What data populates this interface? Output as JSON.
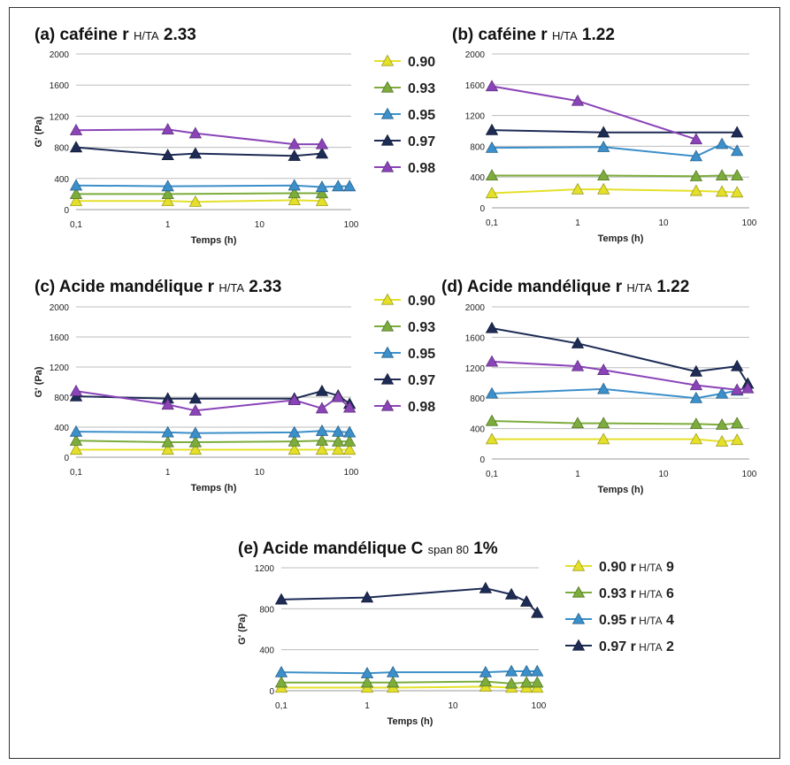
{
  "chart_data": [
    {
      "id": "a",
      "type": "line",
      "title": "(a) caféine r",
      "title_sub": "H/TA",
      "title_value": "2.33",
      "xlabel": "Temps (h)",
      "ylabel": "G' (Pa)",
      "xscale": "log",
      "xlim": [
        0.1,
        100
      ],
      "xticks": [
        "0,1",
        "1",
        "10",
        "100"
      ],
      "ylim": [
        0,
        2000
      ],
      "yticks": [
        "0",
        "400",
        "800",
        "1200",
        "1600",
        "2000"
      ],
      "grid": true,
      "legend_position": "right",
      "series": [
        {
          "name": "0.90",
          "color": "#e4e02a",
          "x": [
            0.1,
            1,
            2,
            24,
            48
          ],
          "y": [
            110,
            110,
            100,
            120,
            110
          ]
        },
        {
          "name": "0.93",
          "color": "#7cac3c",
          "x": [
            0.1,
            1,
            24,
            48
          ],
          "y": [
            200,
            200,
            210,
            210
          ]
        },
        {
          "name": "0.95",
          "color": "#3b8fca",
          "x": [
            0.1,
            1,
            24,
            48,
            72,
            96
          ],
          "y": [
            310,
            300,
            310,
            290,
            300,
            300
          ]
        },
        {
          "name": "0.97",
          "color": "#1d2b55",
          "x": [
            0.1,
            1,
            2,
            24,
            48
          ],
          "y": [
            800,
            700,
            720,
            690,
            720
          ]
        },
        {
          "name": "0.98",
          "color": "#8a44b8",
          "x": [
            0.1,
            1,
            2,
            24,
            48
          ],
          "y": [
            1020,
            1030,
            980,
            840,
            840
          ]
        }
      ]
    },
    {
      "id": "b",
      "type": "line",
      "title": "(b) caféine r",
      "title_sub": "H/TA",
      "title_value": "1.22",
      "xlabel": "Temps (h)",
      "ylabel": "",
      "xscale": "log",
      "xlim": [
        0.1,
        100
      ],
      "xticks": [
        "0,1",
        "1",
        "10",
        "100"
      ],
      "ylim": [
        0,
        2000
      ],
      "yticks": [
        "0",
        "400",
        "800",
        "1200",
        "1600",
        "2000"
      ],
      "grid": true,
      "series": [
        {
          "name": "0.90",
          "color": "#e4e02a",
          "x": [
            0.1,
            1,
            2,
            24,
            48,
            72
          ],
          "y": [
            190,
            240,
            240,
            220,
            210,
            200
          ]
        },
        {
          "name": "0.93",
          "color": "#7cac3c",
          "x": [
            0.1,
            2,
            24,
            48,
            72
          ],
          "y": [
            420,
            420,
            410,
            420,
            420
          ]
        },
        {
          "name": "0.95",
          "color": "#3b8fca",
          "x": [
            0.1,
            2,
            24,
            48,
            72
          ],
          "y": [
            780,
            790,
            670,
            830,
            740
          ]
        },
        {
          "name": "0.97",
          "color": "#1d2b55",
          "x": [
            0.1,
            2,
            72
          ],
          "y": [
            1010,
            980,
            980
          ]
        },
        {
          "name": "0.98",
          "color": "#8a44b8",
          "x": [
            0.1,
            1,
            24
          ],
          "y": [
            1580,
            1390,
            890
          ]
        }
      ]
    },
    {
      "id": "c",
      "type": "line",
      "title": "(c) Acide mandélique r",
      "title_sub": "H/TA",
      "title_value": "2.33",
      "xlabel": "Temps (h)",
      "ylabel": "G' (Pa)",
      "xscale": "log",
      "xlim": [
        0.1,
        100
      ],
      "xticks": [
        "0,1",
        "1",
        "10",
        "100"
      ],
      "ylim": [
        0,
        2000
      ],
      "yticks": [
        "0",
        "400",
        "800",
        "1200",
        "1600",
        "2000"
      ],
      "grid": true,
      "legend_position": "right",
      "series": [
        {
          "name": "0.90",
          "color": "#e4e02a",
          "x": [
            0.1,
            1,
            2,
            24,
            48,
            72,
            96
          ],
          "y": [
            100,
            100,
            100,
            100,
            100,
            100,
            100
          ]
        },
        {
          "name": "0.93",
          "color": "#7cac3c",
          "x": [
            0.1,
            1,
            2,
            24,
            48,
            72,
            96
          ],
          "y": [
            220,
            200,
            200,
            210,
            220,
            210,
            210
          ]
        },
        {
          "name": "0.95",
          "color": "#3b8fca",
          "x": [
            0.1,
            1,
            2,
            24,
            48,
            72,
            96
          ],
          "y": [
            340,
            330,
            320,
            330,
            350,
            340,
            330
          ]
        },
        {
          "name": "0.97",
          "color": "#1d2b55",
          "x": [
            0.1,
            1,
            2,
            24,
            48,
            72,
            96
          ],
          "y": [
            810,
            780,
            780,
            780,
            880,
            820,
            710
          ]
        },
        {
          "name": "0.98",
          "color": "#8a44b8",
          "x": [
            0.1,
            1,
            2,
            24,
            48,
            72,
            96
          ],
          "y": [
            880,
            700,
            620,
            760,
            650,
            800,
            660
          ]
        }
      ]
    },
    {
      "id": "d",
      "type": "line",
      "title": "(d) Acide mandélique r",
      "title_sub": "H/TA",
      "title_value": "1.22",
      "xlabel": "Temps (h)",
      "ylabel": "",
      "xscale": "log",
      "xlim": [
        0.1,
        100
      ],
      "xticks": [
        "0,1",
        "1",
        "10",
        "100"
      ],
      "ylim": [
        0,
        2000
      ],
      "yticks": [
        "0",
        "400",
        "800",
        "1200",
        "1600",
        "2000"
      ],
      "grid": true,
      "series": [
        {
          "name": "0.90",
          "color": "#e4e02a",
          "x": [
            0.1,
            2,
            24,
            48,
            72
          ],
          "y": [
            260,
            260,
            260,
            230,
            250
          ]
        },
        {
          "name": "0.93",
          "color": "#7cac3c",
          "x": [
            0.1,
            1,
            2,
            24,
            48,
            72
          ],
          "y": [
            500,
            470,
            470,
            460,
            450,
            470
          ]
        },
        {
          "name": "0.95",
          "color": "#3b8fca",
          "x": [
            0.1,
            2,
            24,
            48,
            72
          ],
          "y": [
            860,
            920,
            800,
            860,
            900
          ]
        },
        {
          "name": "0.97",
          "color": "#1d2b55",
          "x": [
            0.1,
            1,
            24,
            72,
            96
          ],
          "y": [
            1720,
            1520,
            1150,
            1220,
            990
          ]
        },
        {
          "name": "0.98",
          "color": "#8a44b8",
          "x": [
            0.1,
            1,
            2,
            24,
            72,
            96
          ],
          "y": [
            1280,
            1220,
            1170,
            970,
            910,
            930
          ]
        }
      ]
    },
    {
      "id": "e",
      "type": "line",
      "title": "(e) Acide mandélique C",
      "title_sub": "span 80",
      "title_value": "1%",
      "xlabel": "Temps (h)",
      "ylabel": "G' (Pa)",
      "xscale": "log",
      "xlim": [
        0.1,
        100
      ],
      "xticks": [
        "0,1",
        "1",
        "10",
        "100"
      ],
      "ylim": [
        0,
        1200
      ],
      "yticks": [
        "0",
        "400",
        "800",
        "1200"
      ],
      "grid": true,
      "legend_position": "right",
      "series": [
        {
          "name": "0.90 r",
          "legend_sub": "H/TA",
          "legend_value": "9",
          "color": "#e4e02a",
          "x": [
            0.1,
            1,
            2,
            24,
            48,
            72,
            96
          ],
          "y": [
            30,
            30,
            30,
            40,
            30,
            30,
            30
          ]
        },
        {
          "name": "0.93 r",
          "legend_sub": "H/TA",
          "legend_value": "6",
          "color": "#7cac3c",
          "x": [
            0.1,
            1,
            2,
            24,
            48,
            72,
            96
          ],
          "y": [
            80,
            80,
            80,
            90,
            70,
            80,
            80
          ]
        },
        {
          "name": "0.95 r",
          "legend_sub": "H/TA",
          "legend_value": "4",
          "color": "#3b8fca",
          "x": [
            0.1,
            1,
            2,
            24,
            48,
            72,
            96
          ],
          "y": [
            180,
            170,
            180,
            180,
            190,
            190,
            190
          ]
        },
        {
          "name": "0.97 r",
          "legend_sub": "H/TA",
          "legend_value": "2",
          "color": "#1d2b55",
          "x": [
            0.1,
            1,
            24,
            48,
            72,
            96
          ],
          "y": [
            890,
            910,
            1000,
            940,
            870,
            760
          ]
        }
      ]
    }
  ]
}
